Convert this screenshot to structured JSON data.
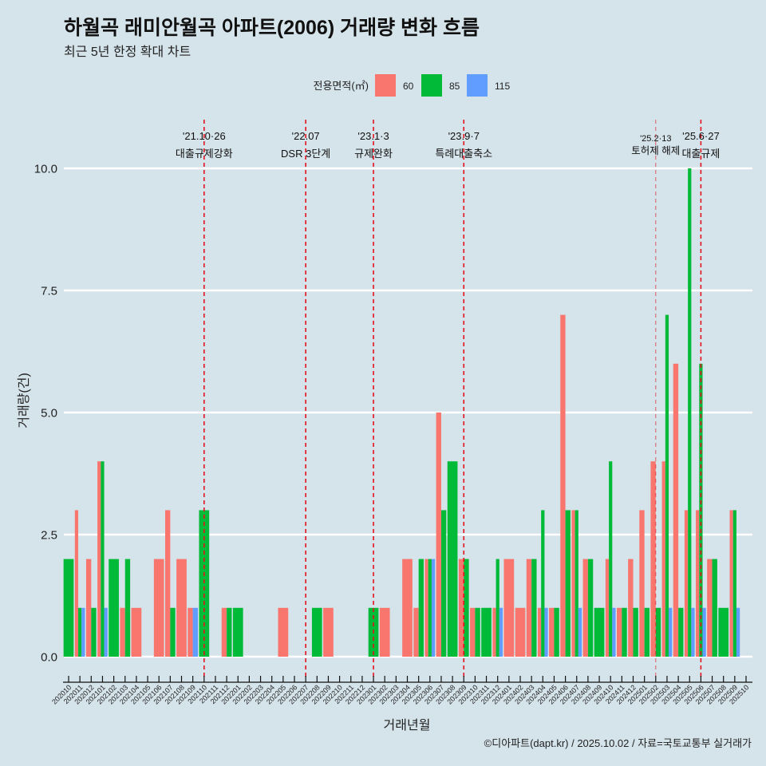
{
  "chart_data": {
    "type": "bar",
    "title": "하월곡 래미안월곡 아파트(2006) 거래량 변화 흐름",
    "subtitle": "최근 5년 한정 확대 차트",
    "xlabel": "거래년월",
    "ylabel": "거래량(건)",
    "ylim": [
      0,
      10
    ],
    "yticks": [
      0,
      2.5,
      5,
      7.5,
      10
    ],
    "ytick_labels": [
      "0.0",
      "2.5",
      "5.0",
      "7.5",
      "10.0"
    ],
    "grid": "major-y",
    "legend": {
      "title": "전용면적(㎡)",
      "position": "top"
    },
    "caption": "©디아파트(dapt.kr) / 2025.10.02 / 자료=국토교통부 실거래가",
    "categories": [
      "202010",
      "202011",
      "202012",
      "202101",
      "202102",
      "202103",
      "202104",
      "202105",
      "202106",
      "202107",
      "202108",
      "202109",
      "202110",
      "202111",
      "202112",
      "202201",
      "202202",
      "202203",
      "202204",
      "202205",
      "202206",
      "202207",
      "202208",
      "202209",
      "202210",
      "202211",
      "202212",
      "202301",
      "202302",
      "202303",
      "202304",
      "202305",
      "202306",
      "202307",
      "202308",
      "202309",
      "202310",
      "202311",
      "202312",
      "202401",
      "202402",
      "202403",
      "202404",
      "202405",
      "202406",
      "202407",
      "202408",
      "202409",
      "202410",
      "202411",
      "202412",
      "202501",
      "202502",
      "202503",
      "202504",
      "202505",
      "202506",
      "202507",
      "202508",
      "202509",
      "202510"
    ],
    "series": [
      {
        "name": "60",
        "color": "#F8766D",
        "values": [
          null,
          3,
          2,
          4,
          null,
          1,
          1,
          null,
          2,
          3,
          2,
          1,
          null,
          null,
          1,
          null,
          null,
          null,
          null,
          1,
          null,
          null,
          null,
          1,
          null,
          null,
          null,
          null,
          1,
          null,
          2,
          1,
          2,
          5,
          null,
          2,
          1,
          null,
          1,
          2,
          1,
          2,
          1,
          1,
          7,
          3,
          2,
          null,
          2,
          1,
          2,
          3,
          4,
          4,
          6,
          3,
          3,
          2,
          null,
          3,
          null
        ]
      },
      {
        "name": "85",
        "color": "#00BA38",
        "values": [
          2,
          1,
          1,
          4,
          2,
          2,
          null,
          null,
          null,
          1,
          null,
          null,
          3,
          null,
          1,
          1,
          null,
          null,
          null,
          null,
          null,
          null,
          1,
          null,
          null,
          null,
          null,
          1,
          null,
          null,
          null,
          2,
          2,
          3,
          4,
          2,
          1,
          1,
          2,
          null,
          null,
          2,
          3,
          1,
          3,
          3,
          2,
          1,
          4,
          1,
          1,
          1,
          1,
          7,
          1,
          10,
          6,
          2,
          1,
          3,
          null
        ]
      },
      {
        "name": "115",
        "color": "#619CFF",
        "values": [
          null,
          1,
          null,
          1,
          null,
          null,
          null,
          null,
          null,
          null,
          null,
          1,
          null,
          null,
          null,
          null,
          null,
          null,
          null,
          null,
          null,
          null,
          null,
          null,
          null,
          null,
          null,
          null,
          null,
          null,
          null,
          null,
          2,
          null,
          null,
          null,
          null,
          null,
          1,
          null,
          null,
          null,
          1,
          null,
          null,
          1,
          null,
          null,
          1,
          null,
          null,
          null,
          null,
          1,
          null,
          1,
          1,
          null,
          null,
          1,
          null
        ]
      }
    ],
    "annotations": [
      {
        "month": "202110",
        "date": "'21.10·26",
        "event": "대출규제강화",
        "style": "major"
      },
      {
        "month": "202207",
        "date": "'22.07",
        "event": "DSR 3단계",
        "style": "major"
      },
      {
        "month": "202301",
        "date": "'23.1·3",
        "event": "규제완화",
        "style": "major"
      },
      {
        "month": "202309",
        "date": "'23.9·7",
        "event": "특례대출축소",
        "style": "major"
      },
      {
        "month": "202502",
        "date": "'25.2·13",
        "event": "토허제 해제",
        "style": "minor"
      },
      {
        "month": "202506",
        "date": "'25.6·27",
        "event": "대출규제",
        "style": "major"
      }
    ],
    "annotation_line_color": "#E3121E",
    "gridline_color": "#FFFFFF",
    "axis_color": "#111111"
  }
}
